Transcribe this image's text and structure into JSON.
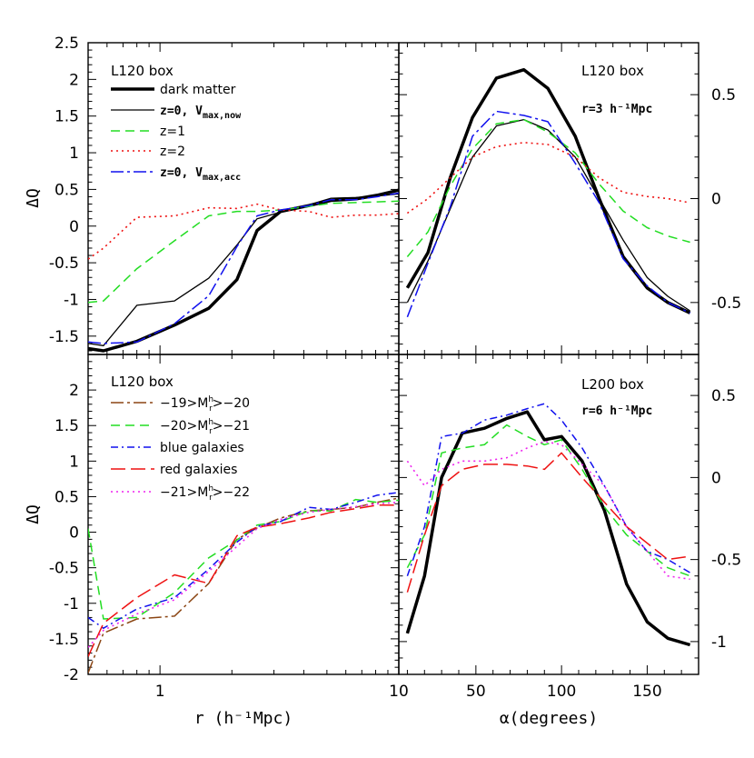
{
  "chart_data": [
    {
      "type": "line",
      "panel": "top-left",
      "box_label": "L120 box",
      "xlabel": "",
      "ylabel": "ΔQ",
      "xscale": "log",
      "xlim": [
        0.5,
        10
      ],
      "ylim": [
        -1.75,
        2.5
      ],
      "ytick_labels": [
        "2.5",
        "2",
        "1.5",
        "1",
        "0.5",
        "0",
        "-0.5",
        "-1",
        "-1.5"
      ],
      "legend_position": "top-left",
      "series": [
        {
          "name": "dark matter",
          "color": "#000000",
          "dash": "solid",
          "width": 3.5,
          "x": [
            0.5,
            0.58,
            0.8,
            1.15,
            1.6,
            2.1,
            2.55,
            3.2,
            4.2,
            5.2,
            6.6,
            8.1,
            10
          ],
          "y": [
            -1.67,
            -1.7,
            -1.57,
            -1.35,
            -1.12,
            -0.73,
            -0.06,
            0.2,
            0.28,
            0.35,
            0.37,
            0.42,
            0.49
          ]
        },
        {
          "name": "z=0, V_max,now",
          "color": "#000000",
          "dash": "solid",
          "width": 1.3,
          "x": [
            0.5,
            0.58,
            0.8,
            1.15,
            1.6,
            2.1,
            2.55,
            3.2,
            4.2,
            5.2,
            6.6,
            8.1,
            10
          ],
          "y": [
            -1.6,
            -1.63,
            -1.08,
            -1.02,
            -0.71,
            -0.26,
            0.1,
            0.19,
            0.29,
            0.38,
            0.39,
            0.41,
            0.44
          ]
        },
        {
          "name": "z=1",
          "color": "#22dd22",
          "dash": "10,6",
          "width": 1.5,
          "x": [
            0.5,
            0.58,
            0.8,
            1.15,
            1.6,
            2.1,
            2.55,
            3.2,
            4.2,
            5.2,
            6.6,
            8.1,
            10
          ],
          "y": [
            -1.04,
            -1.02,
            -0.58,
            -0.2,
            0.14,
            0.2,
            0.2,
            0.22,
            0.27,
            0.31,
            0.32,
            0.33,
            0.34
          ]
        },
        {
          "name": "z=2",
          "color": "#ee1111",
          "dash": "2,4",
          "width": 1.6,
          "x": [
            0.5,
            0.58,
            0.8,
            1.15,
            1.6,
            2.1,
            2.55,
            3.2,
            4.2,
            5.2,
            6.6,
            8.1,
            10
          ],
          "y": [
            -0.45,
            -0.3,
            0.12,
            0.14,
            0.25,
            0.24,
            0.3,
            0.22,
            0.2,
            0.12,
            0.15,
            0.15,
            0.17
          ]
        },
        {
          "name": "z=0, V_max,acc",
          "color": "#1111ee",
          "dash": "14,4,3,4",
          "width": 1.5,
          "x": [
            0.5,
            0.58,
            0.8,
            1.15,
            1.6,
            2.1,
            2.55,
            3.2,
            4.2,
            5.2,
            6.6,
            8.1,
            10
          ],
          "y": [
            -1.58,
            -1.6,
            -1.58,
            -1.33,
            -0.95,
            -0.28,
            0.14,
            0.22,
            0.28,
            0.36,
            0.36,
            0.4,
            0.45
          ]
        }
      ]
    },
    {
      "type": "line",
      "panel": "top-right",
      "box_label": "L120 box",
      "annotation": "r=3 h⁻¹Mpc",
      "xlim": [
        5,
        180
      ],
      "ylim": [
        -0.75,
        0.75
      ],
      "ytick_labels": [
        "0.5",
        "0",
        "-0.5"
      ],
      "series": [
        {
          "name": "dark matter",
          "color": "#000000",
          "dash": "solid",
          "width": 3.5,
          "x": [
            10,
            22,
            35,
            48,
            62,
            78,
            92,
            108,
            122,
            136,
            150,
            162,
            175
          ],
          "y": [
            -0.43,
            -0.26,
            0.1,
            0.39,
            0.58,
            0.62,
            0.53,
            0.3,
            0.0,
            -0.28,
            -0.43,
            -0.5,
            -0.55
          ]
        },
        {
          "name": "z=0, V_max,now",
          "color": "#000000",
          "dash": "solid",
          "width": 1.3,
          "x": [
            10,
            22,
            35,
            48,
            62,
            78,
            92,
            108,
            122,
            136,
            150,
            162,
            175
          ],
          "y": [
            -0.5,
            -0.3,
            -0.05,
            0.2,
            0.35,
            0.38,
            0.33,
            0.2,
            0.0,
            -0.2,
            -0.38,
            -0.47,
            -0.54
          ]
        },
        {
          "name": "z=1",
          "color": "#22dd22",
          "dash": "10,6",
          "width": 1.5,
          "x": [
            10,
            22,
            35,
            48,
            62,
            78,
            92,
            108,
            122,
            136,
            150,
            162,
            175
          ],
          "y": [
            -0.28,
            -0.16,
            0.06,
            0.24,
            0.36,
            0.38,
            0.32,
            0.22,
            0.07,
            -0.06,
            -0.14,
            -0.18,
            -0.21
          ]
        },
        {
          "name": "z=2",
          "color": "#ee1111",
          "dash": "2,4",
          "width": 1.6,
          "x": [
            10,
            22,
            35,
            48,
            62,
            78,
            92,
            108,
            122,
            136,
            150,
            162,
            175
          ],
          "y": [
            -0.07,
            0.0,
            0.1,
            0.2,
            0.25,
            0.27,
            0.26,
            0.2,
            0.1,
            0.03,
            0.01,
            0.0,
            -0.02
          ]
        },
        {
          "name": "z=0, V_max,acc",
          "color": "#1111ee",
          "dash": "14,4,3,4",
          "width": 1.5,
          "x": [
            10,
            22,
            35,
            48,
            62,
            78,
            92,
            108,
            122,
            136,
            150,
            162,
            175
          ],
          "y": [
            -0.57,
            -0.31,
            -0.04,
            0.3,
            0.42,
            0.4,
            0.37,
            0.17,
            -0.02,
            -0.29,
            -0.42,
            -0.5,
            -0.55
          ]
        }
      ]
    },
    {
      "type": "line",
      "panel": "bottom-left",
      "box_label": "L120 box",
      "xlabel": "r (h⁻¹Mpc)",
      "ylabel": "ΔQ",
      "xscale": "log",
      "xlim": [
        0.5,
        10
      ],
      "xtick_labels": [
        "1",
        "10"
      ],
      "ylim": [
        -2.0,
        2.5
      ],
      "ytick_labels": [
        "2",
        "1.5",
        "1",
        "0.5",
        "0",
        "-0.5",
        "-1",
        "-1.5",
        "-2"
      ],
      "legend_position": "top-left",
      "series": [
        {
          "name": "−19>M_r^h>−20",
          "color": "#8b4513",
          "dash": "14,4,3,4",
          "width": 1.5,
          "x": [
            0.5,
            0.58,
            0.8,
            1.15,
            1.6,
            2.1,
            2.55,
            3.2,
            4.2,
            5.2,
            6.6,
            8.1,
            10
          ],
          "y": [
            -1.98,
            -1.42,
            -1.22,
            -1.18,
            -0.72,
            -0.1,
            0.06,
            0.2,
            0.3,
            0.32,
            0.35,
            0.42,
            0.48
          ]
        },
        {
          "name": "−20>M_r^h>−21",
          "color": "#22dd22",
          "dash": "10,6",
          "width": 1.5,
          "x": [
            0.5,
            0.58,
            0.8,
            1.15,
            1.6,
            2.1,
            2.55,
            3.2,
            4.2,
            5.2,
            6.6,
            8.1,
            10
          ],
          "y": [
            0.05,
            -1.22,
            -1.2,
            -0.85,
            -0.36,
            -0.11,
            0.1,
            0.15,
            0.3,
            0.3,
            0.46,
            0.42,
            0.45
          ]
        },
        {
          "name": "blue galaxies",
          "color": "#1111ee",
          "dash": "8,4,2,4",
          "width": 1.5,
          "x": [
            0.5,
            0.58,
            0.8,
            1.15,
            1.6,
            2.1,
            2.55,
            3.2,
            4.2,
            5.2,
            6.6,
            8.1,
            10
          ],
          "y": [
            -1.2,
            -1.35,
            -1.08,
            -0.92,
            -0.52,
            -0.14,
            0.08,
            0.15,
            0.35,
            0.32,
            0.42,
            0.52,
            0.56
          ]
        },
        {
          "name": "red galaxies",
          "color": "#ee1111",
          "dash": "16,6",
          "width": 1.5,
          "x": [
            0.5,
            0.58,
            0.8,
            1.15,
            1.6,
            2.1,
            2.55,
            3.2,
            4.2,
            5.2,
            6.6,
            8.1,
            10
          ],
          "y": [
            -1.75,
            -1.28,
            -0.92,
            -0.6,
            -0.72,
            -0.05,
            0.07,
            0.12,
            0.2,
            0.28,
            0.33,
            0.38,
            0.38
          ]
        },
        {
          "name": "−21>M_r^h>−22",
          "color": "#ee22ee",
          "dash": "2,4",
          "width": 1.6,
          "x": [
            0.5,
            0.58,
            0.8,
            1.15,
            1.6,
            2.1,
            2.55,
            3.2,
            4.2,
            5.2,
            6.6,
            8.1,
            10
          ],
          "y": [
            -1.62,
            -1.38,
            -1.15,
            -0.95,
            -0.55,
            -0.2,
            0.05,
            0.18,
            0.28,
            0.32,
            0.36,
            0.4,
            0.42
          ]
        }
      ]
    },
    {
      "type": "line",
      "panel": "bottom-right",
      "box_label": "L200 box",
      "annotation": "r=6 h⁻¹Mpc",
      "xlabel": "α(degrees)",
      "xlim": [
        5,
        180
      ],
      "xtick_labels": [
        "50",
        "100",
        "150"
      ],
      "ylim": [
        -1.2,
        0.75
      ],
      "ytick_labels": [
        "0.5",
        "0",
        "-0.5",
        "-1"
      ],
      "series": [
        {
          "name": "dark matter",
          "color": "#000000",
          "dash": "solid",
          "width": 3.5,
          "x": [
            10,
            20,
            30,
            42,
            55,
            68,
            80,
            90,
            100,
            112,
            125,
            138,
            150,
            162,
            175
          ],
          "y": [
            -0.95,
            -0.6,
            0.0,
            0.27,
            0.3,
            0.36,
            0.4,
            0.23,
            0.25,
            0.1,
            -0.2,
            -0.65,
            -0.88,
            -0.98,
            -1.02
          ]
        },
        {
          "name": "−20>M_r^h>−21",
          "color": "#22dd22",
          "dash": "10,6",
          "width": 1.5,
          "x": [
            10,
            20,
            30,
            42,
            55,
            68,
            80,
            90,
            100,
            112,
            125,
            138,
            150,
            162,
            175
          ],
          "y": [
            -0.55,
            -0.35,
            0.15,
            0.18,
            0.2,
            0.32,
            0.25,
            0.2,
            0.23,
            0.05,
            -0.18,
            -0.35,
            -0.45,
            -0.55,
            -0.6
          ]
        },
        {
          "name": "blue galaxies",
          "color": "#1111ee",
          "dash": "8,4,2,4",
          "width": 1.5,
          "x": [
            10,
            20,
            30,
            42,
            55,
            68,
            80,
            90,
            100,
            112,
            125,
            138,
            150,
            162,
            175
          ],
          "y": [
            -0.6,
            -0.3,
            0.25,
            0.27,
            0.35,
            0.38,
            0.42,
            0.45,
            0.35,
            0.18,
            -0.05,
            -0.3,
            -0.45,
            -0.5,
            -0.58
          ]
        },
        {
          "name": "red galaxies",
          "color": "#ee1111",
          "dash": "16,6",
          "width": 1.5,
          "x": [
            10,
            20,
            30,
            42,
            55,
            68,
            80,
            90,
            100,
            112,
            125,
            138,
            150,
            162,
            175
          ],
          "y": [
            -0.7,
            -0.35,
            -0.05,
            0.05,
            0.08,
            0.08,
            0.07,
            0.05,
            0.15,
            0.0,
            -0.15,
            -0.3,
            -0.4,
            -0.5,
            -0.48
          ]
        },
        {
          "name": "−21>M_r^h>−22",
          "color": "#ee22ee",
          "dash": "2,4",
          "width": 1.6,
          "x": [
            10,
            20,
            30,
            42,
            55,
            68,
            80,
            90,
            100,
            112,
            125,
            138,
            150,
            162,
            175
          ],
          "y": [
            0.1,
            -0.05,
            0.05,
            0.1,
            0.1,
            0.12,
            0.18,
            0.22,
            0.2,
            0.08,
            -0.05,
            -0.3,
            -0.45,
            -0.6,
            -0.62
          ]
        }
      ]
    }
  ],
  "legends": {
    "top_left": [
      "dark matter",
      "z=0, V",
      "z=1",
      "z=2",
      "z=0, V"
    ],
    "top_left_subscripts": [
      "max,now",
      "max,acc"
    ],
    "bottom_left": [
      "blue galaxies",
      "red galaxies"
    ],
    "bottom_left_mag": [
      {
        "pre": "−19>M",
        "sub": "r",
        "sup": "h",
        "post": ">−20"
      },
      {
        "pre": "−20>M",
        "sub": "r",
        "sup": "h",
        "post": ">−21"
      },
      {
        "pre": "−21>M",
        "sub": "r",
        "sup": "h",
        "post": ">−22"
      }
    ]
  }
}
